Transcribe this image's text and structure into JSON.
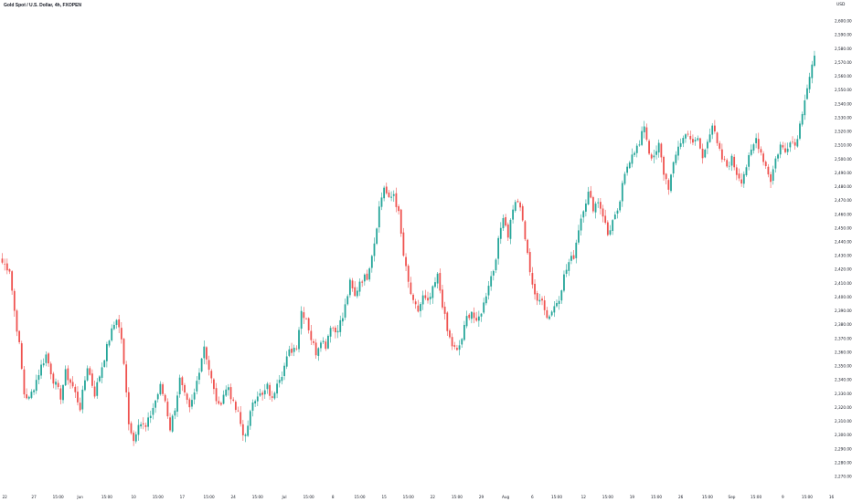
{
  "header": {
    "title": "Gold Spot / U.S. Dollar, 4h, FXOPEN"
  },
  "colors": {
    "up": "#26a69a",
    "down": "#ef5350",
    "wick_up": "#26a69a",
    "wick_down": "#ef5350",
    "text": "#131722"
  },
  "chart_data": {
    "type": "candlestick",
    "title": "Gold Spot / U.S. Dollar, 4h, FXOPEN",
    "currency_label": "USD",
    "y_axis_position": "right",
    "ylim": [
      2270,
      2610
    ],
    "grid": false,
    "y_ticks": [
      2600,
      2590,
      2580,
      2570,
      2560,
      2550,
      2540,
      2530,
      2520,
      2510,
      2500,
      2490,
      2480,
      2470,
      2460,
      2450,
      2440,
      2430,
      2420,
      2410,
      2400,
      2390,
      2380,
      2370,
      2360,
      2350,
      2340,
      2330,
      2320,
      2310,
      2300,
      2290,
      2280,
      2270
    ],
    "y_tick_labels": [
      "2,600.00",
      "2,590.00",
      "2,580.00",
      "2,570.00",
      "2,560.00",
      "2,550.00",
      "2,540.00",
      "2,530.00",
      "2,520.00",
      "2,510.00",
      "2,500.00",
      "2,490.00",
      "2,480.00",
      "2,470.00",
      "2,460.00",
      "2,450.00",
      "2,440.00",
      "2,430.00",
      "2,420.00",
      "2,410.00",
      "2,400.00",
      "2,390.00",
      "2,380.00",
      "2,370.00",
      "2,360.00",
      "2,350.00",
      "2,340.00",
      "2,330.00",
      "2,320.00",
      "2,310.00",
      "2,300.00",
      "2,290.00",
      "2,280.00",
      "2,270.00"
    ],
    "x_tick_labels": [
      "22",
      "27",
      "15:00",
      "Jun",
      "15:00",
      "10",
      "15:00",
      "17",
      "15:00",
      "24",
      "15:00",
      "Jul",
      "15:00",
      "8",
      "15:00",
      "15",
      "15:00",
      "22",
      "15:00",
      "29",
      "Aug",
      "6",
      "15:00",
      "12",
      "15:00",
      "19",
      "15:00",
      "26",
      "15:00",
      "Sep",
      "15:00",
      "9",
      "15:00",
      "16"
    ],
    "x_tick_index": [
      1,
      13,
      23,
      32,
      43,
      54,
      64,
      74,
      85,
      95,
      105,
      116,
      126,
      136,
      147,
      157,
      167,
      177,
      187,
      197,
      207,
      218,
      228,
      239,
      249,
      259,
      269,
      279,
      290,
      300,
      310,
      321,
      331,
      341
    ],
    "waypoints": [
      [
        0,
        2425
      ],
      [
        3,
        2420
      ],
      [
        5,
        2390
      ],
      [
        7,
        2365
      ],
      [
        9,
        2330
      ],
      [
        11,
        2326
      ],
      [
        13,
        2335
      ],
      [
        16,
        2350
      ],
      [
        18,
        2358
      ],
      [
        21,
        2340
      ],
      [
        24,
        2328
      ],
      [
        26,
        2345
      ],
      [
        29,
        2335
      ],
      [
        32,
        2320
      ],
      [
        35,
        2350
      ],
      [
        38,
        2330
      ],
      [
        41,
        2350
      ],
      [
        44,
        2370
      ],
      [
        47,
        2385
      ],
      [
        49,
        2370
      ],
      [
        51,
        2330
      ],
      [
        52,
        2310
      ],
      [
        54,
        2296
      ],
      [
        56,
        2310
      ],
      [
        59,
        2305
      ],
      [
        62,
        2320
      ],
      [
        65,
        2335
      ],
      [
        67,
        2325
      ],
      [
        69,
        2305
      ],
      [
        71,
        2320
      ],
      [
        73,
        2340
      ],
      [
        75,
        2328
      ],
      [
        77,
        2318
      ],
      [
        79,
        2330
      ],
      [
        81,
        2348
      ],
      [
        83,
        2365
      ],
      [
        85,
        2348
      ],
      [
        87,
        2332
      ],
      [
        89,
        2320
      ],
      [
        91,
        2330
      ],
      [
        93,
        2335
      ],
      [
        95,
        2322
      ],
      [
        97,
        2315
      ],
      [
        99,
        2300
      ],
      [
        101,
        2305
      ],
      [
        103,
        2325
      ],
      [
        105,
        2330
      ],
      [
        107,
        2328
      ],
      [
        109,
        2335
      ],
      [
        111,
        2325
      ],
      [
        113,
        2340
      ],
      [
        115,
        2345
      ],
      [
        118,
        2360
      ],
      [
        121,
        2365
      ],
      [
        123,
        2390
      ],
      [
        125,
        2385
      ],
      [
        127,
        2370
      ],
      [
        129,
        2360
      ],
      [
        131,
        2370
      ],
      [
        133,
        2365
      ],
      [
        135,
        2380
      ],
      [
        137,
        2375
      ],
      [
        140,
        2385
      ],
      [
        143,
        2410
      ],
      [
        145,
        2400
      ],
      [
        147,
        2412
      ],
      [
        150,
        2415
      ],
      [
        153,
        2440
      ],
      [
        155,
        2465
      ],
      [
        157,
        2480
      ],
      [
        159,
        2470
      ],
      [
        161,
        2475
      ],
      [
        163,
        2460
      ],
      [
        165,
        2430
      ],
      [
        167,
        2410
      ],
      [
        169,
        2395
      ],
      [
        171,
        2390
      ],
      [
        173,
        2400
      ],
      [
        175,
        2395
      ],
      [
        177,
        2405
      ],
      [
        179,
        2415
      ],
      [
        181,
        2395
      ],
      [
        183,
        2375
      ],
      [
        185,
        2365
      ],
      [
        187,
        2360
      ],
      [
        189,
        2370
      ],
      [
        191,
        2385
      ],
      [
        193,
        2390
      ],
      [
        195,
        2380
      ],
      [
        198,
        2395
      ],
      [
        200,
        2410
      ],
      [
        202,
        2420
      ],
      [
        204,
        2440
      ],
      [
        206,
        2460
      ],
      [
        208,
        2445
      ],
      [
        210,
        2465
      ],
      [
        212,
        2470
      ],
      [
        214,
        2455
      ],
      [
        216,
        2430
      ],
      [
        218,
        2410
      ],
      [
        220,
        2395
      ],
      [
        222,
        2400
      ],
      [
        224,
        2385
      ],
      [
        226,
        2390
      ],
      [
        229,
        2400
      ],
      [
        231,
        2415
      ],
      [
        233,
        2425
      ],
      [
        235,
        2430
      ],
      [
        237,
        2450
      ],
      [
        239,
        2465
      ],
      [
        241,
        2475
      ],
      [
        243,
        2465
      ],
      [
        245,
        2470
      ],
      [
        247,
        2460
      ],
      [
        249,
        2445
      ],
      [
        251,
        2455
      ],
      [
        253,
        2460
      ],
      [
        255,
        2480
      ],
      [
        257,
        2495
      ],
      [
        259,
        2505
      ],
      [
        262,
        2510
      ],
      [
        264,
        2525
      ],
      [
        266,
        2505
      ],
      [
        268,
        2500
      ],
      [
        270,
        2510
      ],
      [
        272,
        2490
      ],
      [
        274,
        2480
      ],
      [
        276,
        2495
      ],
      [
        278,
        2510
      ],
      [
        280,
        2515
      ],
      [
        282,
        2520
      ],
      [
        284,
        2510
      ],
      [
        286,
        2515
      ],
      [
        288,
        2500
      ],
      [
        290,
        2515
      ],
      [
        292,
        2525
      ],
      [
        294,
        2510
      ],
      [
        296,
        2500
      ],
      [
        298,
        2495
      ],
      [
        300,
        2500
      ],
      [
        302,
        2490
      ],
      [
        304,
        2485
      ],
      [
        306,
        2495
      ],
      [
        308,
        2505
      ],
      [
        310,
        2515
      ],
      [
        312,
        2505
      ],
      [
        314,
        2495
      ],
      [
        316,
        2485
      ],
      [
        318,
        2500
      ],
      [
        320,
        2510
      ],
      [
        322,
        2505
      ],
      [
        324,
        2515
      ],
      [
        326,
        2510
      ],
      [
        328,
        2525
      ],
      [
        330,
        2545
      ],
      [
        332,
        2560
      ],
      [
        334,
        2575
      ]
    ]
  }
}
